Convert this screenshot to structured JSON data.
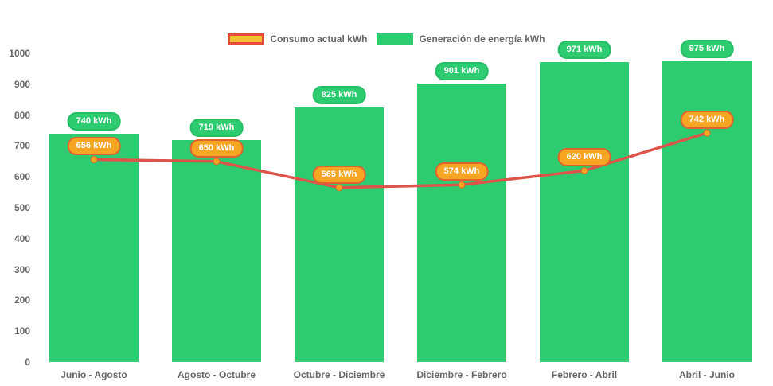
{
  "chart_data": {
    "type": "bar",
    "title": "",
    "categories": [
      "Junio - Agosto",
      "Agosto - Octubre",
      "Octubre - Diciembre",
      "Diciembre - Febrero",
      "Febrero - Abril",
      "Abril - Junio"
    ],
    "series": [
      {
        "name": "Consumo actual kWh",
        "type": "line",
        "values": [
          656,
          650,
          565,
          574,
          620,
          742
        ]
      },
      {
        "name": "Generación de energía kWh",
        "type": "bar",
        "values": [
          740,
          719,
          825,
          901,
          971,
          975
        ]
      }
    ],
    "value_suffix": " kWh",
    "xlabel": "",
    "ylabel": "",
    "ylim": [
      0,
      1000
    ],
    "y_ticks": [
      0,
      100,
      200,
      300,
      400,
      500,
      600,
      700,
      800,
      900,
      1000
    ],
    "grid": false,
    "legend_position": "top"
  },
  "colors": {
    "background": "#ffffff",
    "bar_green": "#2ecc71",
    "bar_label_border": "#25bd65",
    "line_red": "#dc544a",
    "point_orange": "#f6a623",
    "point_label_border": "#e0632f",
    "legend_consumption_fill": "#eec22e",
    "legend_consumption_border": "#e7493c",
    "axis_text": "#666666"
  }
}
